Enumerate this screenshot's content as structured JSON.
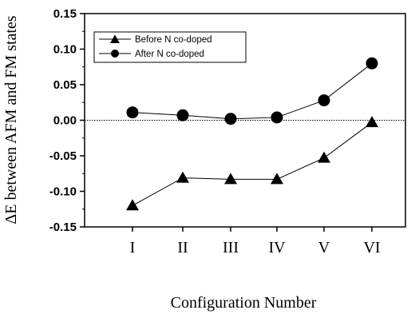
{
  "chart_data": {
    "type": "line",
    "categories": [
      "I",
      "II",
      "III",
      "IV",
      "V",
      "VI"
    ],
    "series": [
      {
        "name": "Before N co-doped",
        "marker": "triangle",
        "values": [
          -0.12,
          -0.081,
          -0.083,
          -0.083,
          -0.053,
          -0.003
        ]
      },
      {
        "name": "After N co-doped",
        "marker": "circle",
        "values": [
          0.011,
          0.007,
          0.002,
          0.004,
          0.028,
          0.08
        ]
      }
    ],
    "xlabel": "Configuration Number",
    "ylabel": "ΔE between AFM and FM states",
    "ylim": [
      -0.15,
      0.15
    ],
    "yticks": [
      0.15,
      0.1,
      0.05,
      0.0,
      -0.05,
      -0.1,
      -0.15
    ],
    "ytick_labels": [
      "0.15",
      "0.10",
      "0.05",
      "0.00",
      "-0.05",
      "-0.10",
      "-0.15"
    ],
    "reference_line": 0,
    "legend_position": "top-left",
    "grid": false,
    "line_color": "#000000"
  }
}
